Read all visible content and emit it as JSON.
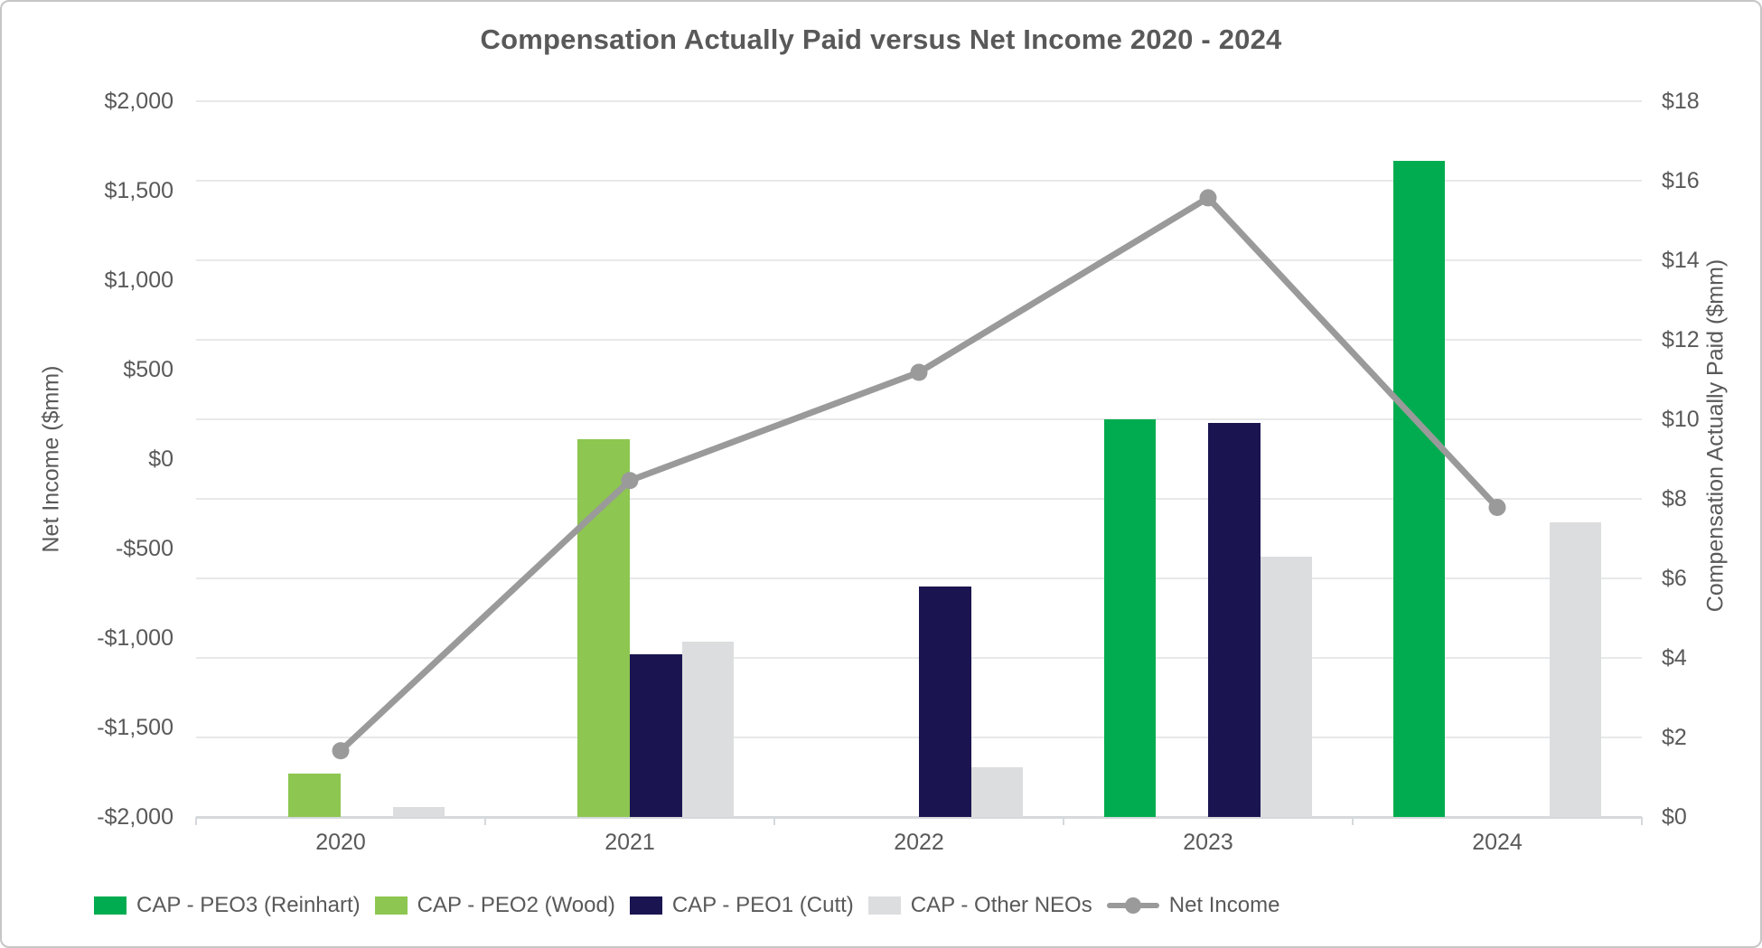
{
  "title": "Compensation Actually Paid versus Net Income 2020 - 2024",
  "chart_data": {
    "type": "combo-bar-line",
    "categories": [
      "2020",
      "2021",
      "2022",
      "2023",
      "2024"
    ],
    "bar_series": [
      {
        "name": "CAP - PEO3 (Reinhart)",
        "color": "#00ac4f",
        "axis": "right",
        "values": [
          null,
          null,
          null,
          10.0,
          16.5
        ]
      },
      {
        "name": "CAP - PEO2 (Wood)",
        "color": "#8dc650",
        "axis": "right",
        "values": [
          1.1,
          9.5,
          null,
          null,
          null
        ]
      },
      {
        "name": "CAP - PEO1 (Cutt)",
        "color": "#1a1550",
        "axis": "right",
        "values": [
          null,
          4.1,
          5.8,
          9.9,
          null
        ]
      },
      {
        "name": "CAP - Other NEOs",
        "color": "#dcddde",
        "axis": "right",
        "values": [
          0.25,
          4.4,
          1.25,
          6.55,
          7.4
        ]
      }
    ],
    "line_series": {
      "name": "Net Income",
      "color": "#9a9a9a",
      "axis": "left",
      "values": [
        -1630,
        -120,
        485,
        1460,
        -270
      ]
    },
    "left_axis": {
      "title": "Net Income ($mm)",
      "min": -2000,
      "max": 2000,
      "tick_values": [
        2000,
        1500,
        1000,
        500,
        0,
        -500,
        -1000,
        -1500,
        -2000
      ],
      "tick_labels": [
        "$2,000",
        "$1,500",
        "$1,000",
        "$500",
        "$0",
        "-$500",
        "-$1,000",
        "-$1,500",
        "-$2,000"
      ]
    },
    "right_axis": {
      "title": "Compensation Actually Paid ($mm)",
      "min": 0,
      "max": 18,
      "tick_values": [
        18,
        16,
        14,
        12,
        10,
        8,
        6,
        4,
        2,
        0
      ],
      "tick_labels": [
        "$18",
        "$16",
        "$14",
        "$12",
        "$10",
        "$8",
        "$6",
        "$4",
        "$2",
        "$0"
      ]
    },
    "gridlines": "right-axis-major",
    "legend_position": "bottom"
  }
}
